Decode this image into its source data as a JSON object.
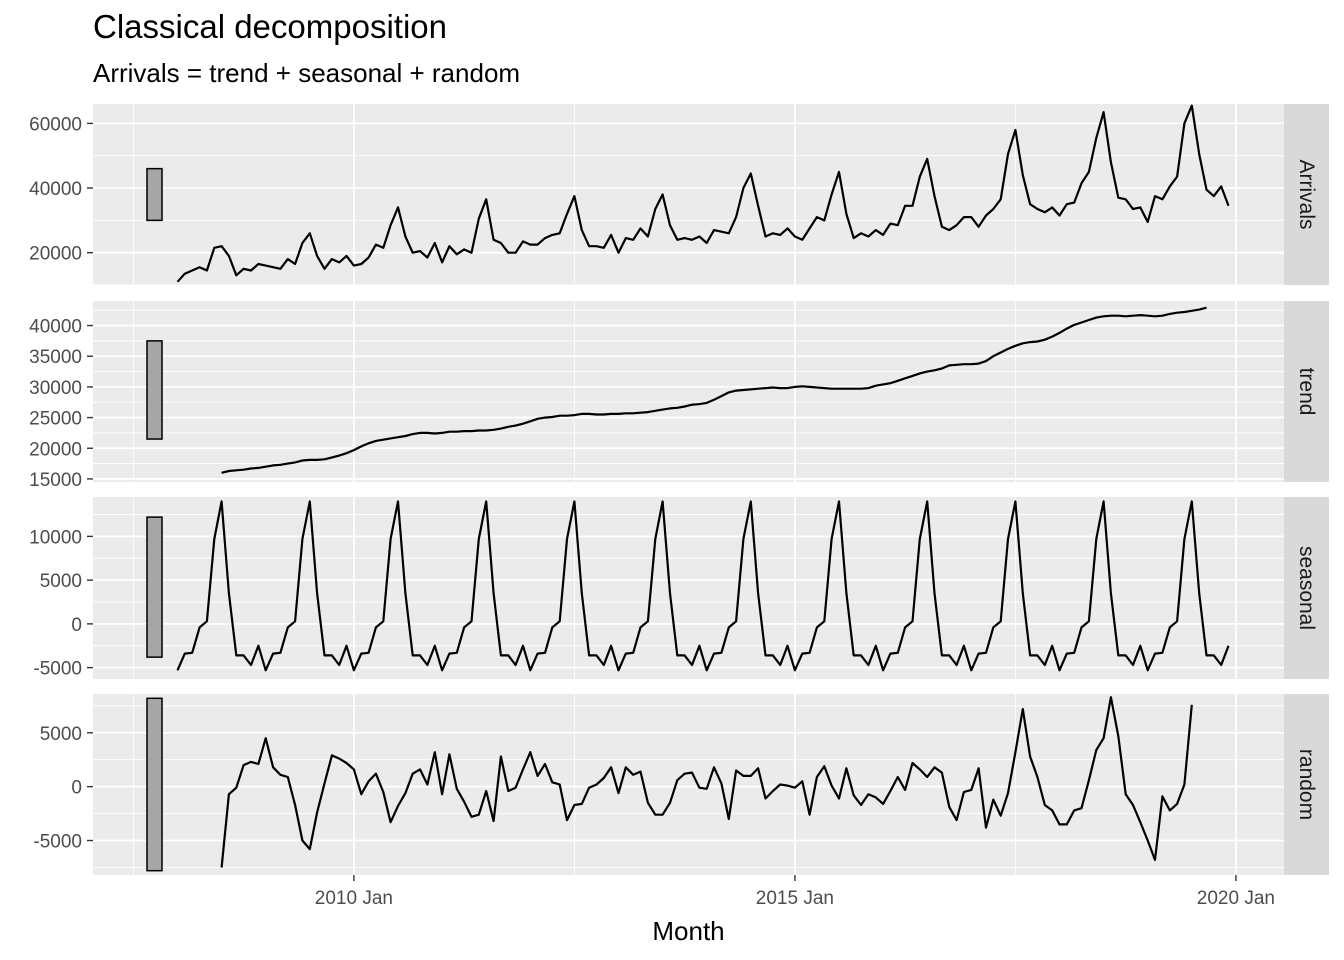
{
  "chart_data": {
    "type": "line",
    "title": "Classical decomposition",
    "subtitle": "Arrivals = trend + seasonal + random",
    "xlabel": "Month",
    "x_ticks": [
      "2010 Jan",
      "2015 Jan",
      "2020 Jan"
    ],
    "x_start": "2008 Jan",
    "x_end": "2019 Dec",
    "panels": [
      {
        "name": "Arrivals",
        "ylim": [
          10000,
          66000
        ],
        "ticks": [
          20000,
          40000,
          60000
        ],
        "scale_bar": [
          30000,
          46000
        ],
        "values": [
          11000,
          13500,
          14500,
          15500,
          14500,
          21500,
          22000,
          19000,
          13000,
          15000,
          14500,
          16500,
          16000,
          15500,
          15000,
          18000,
          16500,
          23000,
          26000,
          19000,
          15000,
          18000,
          17000,
          19000,
          16000,
          16500,
          18500,
          22500,
          21500,
          28500,
          34000,
          25000,
          20000,
          20500,
          18500,
          23000,
          17000,
          22000,
          19500,
          21000,
          20000,
          30500,
          36500,
          24000,
          23000,
          20000,
          20000,
          23500,
          22500,
          22500,
          24500,
          25500,
          26000,
          32000,
          37500,
          27000,
          22000,
          22000,
          21500,
          25500,
          20000,
          24500,
          24000,
          27500,
          25000,
          33500,
          38000,
          28500,
          24000,
          24500,
          24000,
          25000,
          23000,
          27000,
          26500,
          26000,
          31000,
          40000,
          44500,
          34500,
          25000,
          26000,
          25500,
          27500,
          25000,
          24000,
          27500,
          31000,
          30000,
          38000,
          45000,
          32000,
          24500,
          26000,
          25000,
          27000,
          25500,
          29000,
          28500,
          34500,
          34500,
          43500,
          49000,
          37500,
          28000,
          27000,
          28500,
          31000,
          31000,
          28000,
          31500,
          33500,
          36500,
          50500,
          58000,
          44000,
          35000,
          33500,
          32500,
          34000,
          31500,
          35000,
          35500,
          41500,
          45000,
          55500,
          63500,
          48000,
          37000,
          36500,
          33500,
          34000,
          29500,
          37500,
          36500,
          40500,
          43500,
          60000,
          65500,
          50500,
          39500,
          37500,
          40500,
          34500
        ]
      },
      {
        "name": "trend",
        "ylim": [
          14500,
          44000
        ],
        "ticks": [
          15000,
          20000,
          25000,
          30000,
          35000,
          40000
        ],
        "scale_bar": [
          21500,
          37500
        ],
        "offset": 6,
        "values": [
          16000,
          16300,
          16400,
          16500,
          16700,
          16800,
          17000,
          17200,
          17300,
          17500,
          17700,
          18000,
          18100,
          18100,
          18200,
          18500,
          18800,
          19200,
          19700,
          20300,
          20800,
          21200,
          21400,
          21600,
          21800,
          22000,
          22300,
          22500,
          22500,
          22400,
          22500,
          22700,
          22700,
          22800,
          22800,
          22900,
          22900,
          23000,
          23200,
          23500,
          23700,
          24000,
          24400,
          24800,
          25000,
          25100,
          25300,
          25300,
          25400,
          25600,
          25600,
          25500,
          25500,
          25600,
          25600,
          25700,
          25700,
          25800,
          25900,
          26100,
          26300,
          26500,
          26600,
          26800,
          27100,
          27200,
          27400,
          27900,
          28500,
          29100,
          29400,
          29500,
          29600,
          29700,
          29800,
          29900,
          29800,
          29800,
          30000,
          30100,
          30000,
          29900,
          29800,
          29700,
          29700,
          29700,
          29700,
          29700,
          29800,
          30200,
          30400,
          30600,
          31000,
          31400,
          31800,
          32200,
          32500,
          32700,
          33000,
          33500,
          33600,
          33700,
          33700,
          33800,
          34200,
          35000,
          35600,
          36200,
          36700,
          37100,
          37300,
          37400,
          37700,
          38200,
          38800,
          39500,
          40100,
          40500,
          40900,
          41300,
          41500,
          41600,
          41600,
          41500,
          41600,
          41700,
          41600,
          41500,
          41600,
          41900,
          42100,
          42200,
          42400,
          42600,
          42900
        ]
      },
      {
        "name": "seasonal",
        "ylim": [
          -6300,
          14500
        ],
        "ticks": [
          -5000,
          0,
          5000,
          10000
        ],
        "scale_bar": [
          -3800,
          12200
        ],
        "pattern": [
          -5300,
          -3400,
          -3300,
          -400,
          300,
          9700,
          14000,
          3500,
          -3600,
          -3600,
          -4700,
          -2500
        ],
        "values": [
          -5300,
          -3400,
          -3300,
          -400,
          300,
          9700,
          14000,
          3500,
          -3600,
          -3600,
          -4700,
          -2500,
          -5300,
          -3400,
          -3300,
          -400,
          300,
          9700,
          14000,
          3500,
          -3600,
          -3600,
          -4700,
          -2500,
          -5300,
          -3400,
          -3300,
          -400,
          300,
          9700,
          14000,
          3500,
          -3600,
          -3600,
          -4700,
          -2500,
          -5300,
          -3400,
          -3300,
          -400,
          300,
          9700,
          14000,
          3500,
          -3600,
          -3600,
          -4700,
          -2500,
          -5300,
          -3400,
          -3300,
          -400,
          300,
          9700,
          14000,
          3500,
          -3600,
          -3600,
          -4700,
          -2500,
          -5300,
          -3400,
          -3300,
          -400,
          300,
          9700,
          14000,
          3500,
          -3600,
          -3600,
          -4700,
          -2500,
          -5300,
          -3400,
          -3300,
          -400,
          300,
          9700,
          14000,
          3500,
          -3600,
          -3600,
          -4700,
          -2500,
          -5300,
          -3400,
          -3300,
          -400,
          300,
          9700,
          14000,
          3500,
          -3600,
          -3600,
          -4700,
          -2500,
          -5300,
          -3400,
          -3300,
          -400,
          300,
          9700,
          14000,
          3500,
          -3600,
          -3600,
          -4700,
          -2500,
          -5300,
          -3400,
          -3300,
          -400,
          300,
          9700,
          14000,
          3500,
          -3600,
          -3600,
          -4700,
          -2500,
          -5300,
          -3400,
          -3300,
          -400,
          300,
          9700,
          14000,
          3500,
          -3600,
          -3600,
          -4700,
          -2500,
          -5300,
          -3400,
          -3300,
          -400,
          300,
          9700,
          14000,
          3500,
          -3600,
          -3600,
          -4700,
          -2500
        ]
      },
      {
        "name": "random",
        "ylim": [
          -8200,
          8600
        ],
        "ticks": [
          -5000,
          0,
          5000
        ],
        "scale_bar": [
          -7800,
          8200
        ],
        "offset": 6,
        "values": [
          -7500,
          -700,
          -100,
          2000,
          2300,
          2100,
          4500,
          1800,
          1100,
          900,
          -1700,
          -5000,
          -5800,
          -2400,
          300,
          2900,
          2600,
          2200,
          1600,
          -700,
          500,
          1200,
          -500,
          -3300,
          -1800,
          -600,
          1200,
          1600,
          200,
          3200,
          -700,
          3000,
          -200,
          -1400,
          -2800,
          -2600,
          -400,
          -3200,
          2800,
          -400,
          -100,
          1600,
          3200,
          1000,
          2100,
          400,
          200,
          -3100,
          -1700,
          -1600,
          -100,
          200,
          800,
          1800,
          -600,
          1800,
          1100,
          1400,
          -1500,
          -2600,
          -2600,
          -1500,
          600,
          1200,
          1300,
          -100,
          -200,
          1800,
          300,
          -3000,
          1500,
          1000,
          1000,
          1700,
          -1100,
          -400,
          200,
          100,
          -100,
          500,
          -2600,
          900,
          1900,
          100,
          -1100,
          1700,
          -800,
          -1700,
          -700,
          -1000,
          -1600,
          -400,
          900,
          -300,
          2200,
          1600,
          900,
          1800,
          1300,
          -1900,
          -3100,
          -500,
          -300,
          1700,
          -3800,
          -1200,
          -2700,
          -600,
          3200,
          7200,
          2800,
          900,
          -1700,
          -2200,
          -3500,
          -3500,
          -2200,
          -2000,
          600,
          3400,
          4500,
          8300,
          4700,
          -700,
          -1700,
          -3300,
          -5000,
          -6800,
          -900,
          -2200,
          -1600,
          200,
          7600
        ]
      }
    ]
  }
}
